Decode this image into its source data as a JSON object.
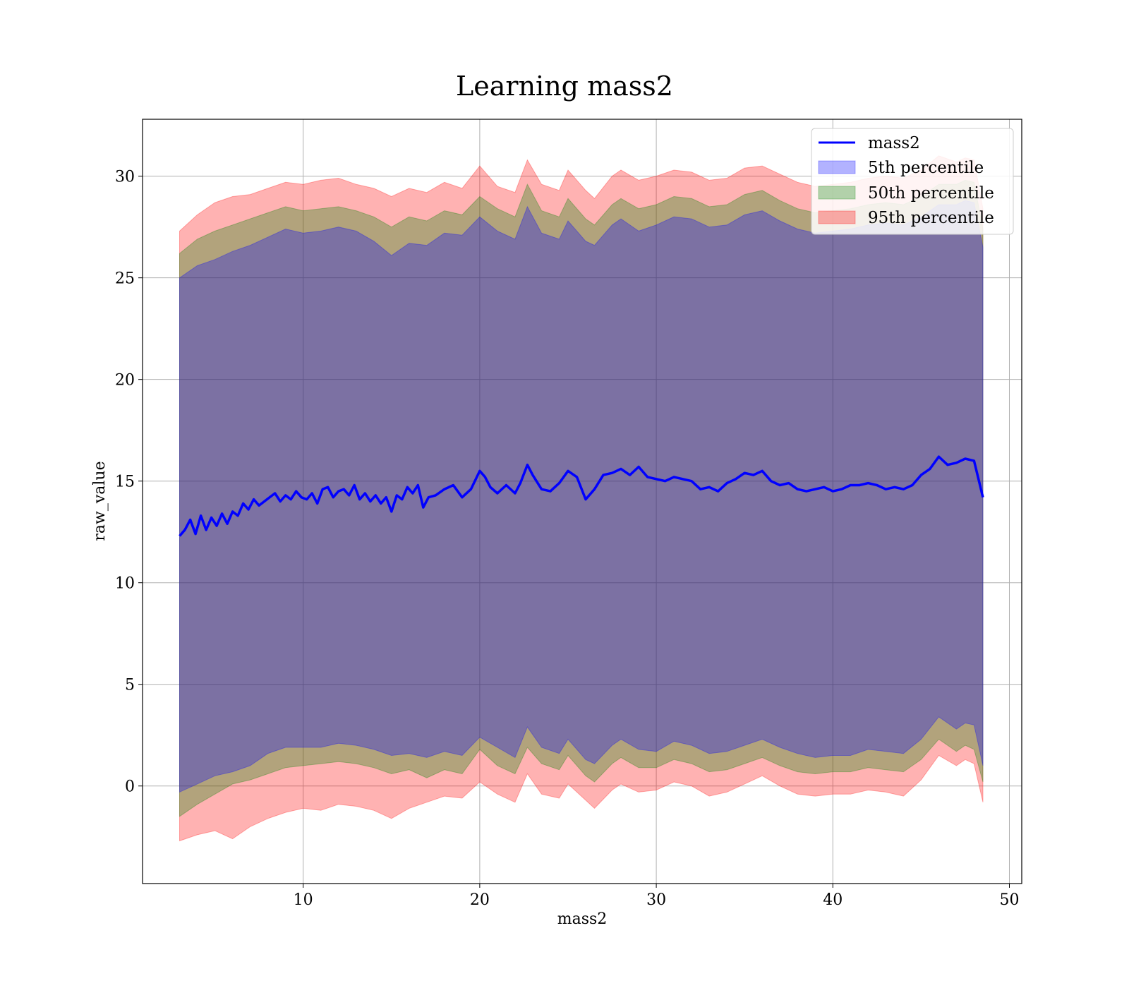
{
  "chart_data": {
    "type": "line",
    "title": "Learning mass2",
    "xlabel": "mass2",
    "ylabel": "raw_value",
    "xlim": [
      0.9,
      50.7
    ],
    "ylim": [
      -4.8,
      32.8
    ],
    "xticks": [
      10,
      20,
      30,
      40,
      50
    ],
    "yticks": [
      0,
      5,
      10,
      15,
      20,
      25,
      30
    ],
    "grid": true,
    "legend_position": "top-right",
    "series": [
      {
        "name": "mass2",
        "kind": "line",
        "color": "#0000ff",
        "x": [
          3.0,
          3.3,
          3.6,
          3.9,
          4.2,
          4.5,
          4.8,
          5.1,
          5.4,
          5.7,
          6.0,
          6.3,
          6.6,
          6.9,
          7.2,
          7.5,
          7.8,
          8.1,
          8.4,
          8.7,
          9.0,
          9.3,
          9.6,
          9.9,
          10.2,
          10.5,
          10.8,
          11.1,
          11.4,
          11.7,
          12.0,
          12.3,
          12.6,
          12.9,
          13.2,
          13.5,
          13.8,
          14.1,
          14.4,
          14.7,
          15.0,
          15.3,
          15.6,
          15.9,
          16.2,
          16.5,
          16.8,
          17.1,
          17.5,
          18.0,
          18.5,
          19.0,
          19.5,
          20.0,
          20.3,
          20.6,
          21.0,
          21.5,
          22.0,
          22.3,
          22.7,
          23.0,
          23.5,
          24.0,
          24.5,
          25.0,
          25.5,
          26.0,
          26.5,
          27.0,
          27.5,
          28.0,
          28.5,
          29.0,
          29.5,
          30.0,
          30.5,
          31.0,
          31.5,
          32.0,
          32.5,
          33.0,
          33.5,
          34.0,
          34.5,
          35.0,
          35.5,
          36.0,
          36.5,
          37.0,
          37.5,
          38.0,
          38.5,
          39.0,
          39.5,
          40.0,
          40.5,
          41.0,
          41.5,
          42.0,
          42.5,
          43.0,
          43.5,
          44.0,
          44.5,
          45.0,
          45.5,
          46.0,
          46.5,
          47.0,
          47.5,
          48.0,
          48.5
        ],
        "y": [
          12.3,
          12.6,
          13.1,
          12.4,
          13.3,
          12.6,
          13.2,
          12.8,
          13.4,
          12.9,
          13.5,
          13.3,
          13.9,
          13.6,
          14.1,
          13.8,
          14.0,
          14.2,
          14.4,
          14.0,
          14.3,
          14.1,
          14.5,
          14.2,
          14.1,
          14.4,
          13.9,
          14.6,
          14.7,
          14.2,
          14.5,
          14.6,
          14.3,
          14.8,
          14.1,
          14.4,
          14.0,
          14.3,
          13.9,
          14.2,
          13.5,
          14.3,
          14.1,
          14.7,
          14.4,
          14.8,
          13.7,
          14.2,
          14.3,
          14.6,
          14.8,
          14.2,
          14.6,
          15.5,
          15.2,
          14.7,
          14.4,
          14.8,
          14.4,
          14.9,
          15.8,
          15.3,
          14.6,
          14.5,
          14.9,
          15.5,
          15.2,
          14.1,
          14.6,
          15.3,
          15.4,
          15.6,
          15.3,
          15.7,
          15.2,
          15.1,
          15.0,
          15.2,
          15.1,
          15.0,
          14.6,
          14.7,
          14.5,
          14.9,
          15.1,
          15.4,
          15.3,
          15.5,
          15.0,
          14.8,
          14.9,
          14.6,
          14.5,
          14.6,
          14.7,
          14.5,
          14.6,
          14.8,
          14.8,
          14.9,
          14.8,
          14.6,
          14.7,
          14.6,
          14.8,
          15.3,
          15.6,
          16.2,
          15.8,
          15.9,
          16.1,
          16.0,
          14.2
        ]
      },
      {
        "name": "5th percentile",
        "kind": "band",
        "color": "#0000ff",
        "x": [
          3.0,
          4.0,
          5.0,
          6.0,
          7.0,
          8.0,
          9.0,
          10.0,
          11.0,
          12.0,
          13.0,
          14.0,
          15.0,
          16.0,
          17.0,
          18.0,
          19.0,
          20.0,
          21.0,
          22.0,
          22.7,
          23.5,
          24.5,
          25.0,
          26.0,
          26.5,
          27.5,
          28.0,
          29.0,
          30.0,
          31.0,
          32.0,
          33.0,
          34.0,
          35.0,
          36.0,
          37.0,
          38.0,
          39.0,
          40.0,
          41.0,
          42.0,
          43.0,
          44.0,
          45.0,
          46.0,
          47.0,
          47.5,
          48.0,
          48.5
        ],
        "lower": [
          -0.3,
          0.1,
          0.5,
          0.7,
          1.0,
          1.6,
          1.9,
          1.9,
          1.9,
          2.1,
          2.0,
          1.8,
          1.5,
          1.6,
          1.4,
          1.7,
          1.5,
          2.4,
          1.9,
          1.4,
          2.9,
          1.9,
          1.6,
          2.3,
          1.3,
          1.1,
          2.0,
          2.3,
          1.8,
          1.7,
          2.2,
          2.0,
          1.6,
          1.7,
          2.0,
          2.3,
          1.9,
          1.6,
          1.4,
          1.5,
          1.5,
          1.8,
          1.7,
          1.6,
          2.3,
          3.4,
          2.8,
          3.1,
          3.0,
          1.0
        ],
        "upper": [
          25.0,
          25.6,
          25.9,
          26.3,
          26.6,
          27.0,
          27.4,
          27.2,
          27.3,
          27.5,
          27.3,
          26.8,
          26.1,
          26.7,
          26.6,
          27.2,
          27.1,
          28.0,
          27.3,
          26.9,
          28.5,
          27.2,
          26.9,
          27.8,
          26.8,
          26.6,
          27.6,
          27.9,
          27.3,
          27.6,
          28.0,
          27.9,
          27.5,
          27.6,
          28.1,
          28.3,
          27.8,
          27.4,
          27.2,
          27.3,
          27.4,
          27.6,
          27.7,
          27.6,
          28.0,
          28.6,
          28.6,
          28.8,
          28.7,
          26.5
        ]
      },
      {
        "name": "50th percentile",
        "kind": "band",
        "color": "#008000",
        "x": [
          3.0,
          4.0,
          5.0,
          6.0,
          7.0,
          8.0,
          9.0,
          10.0,
          11.0,
          12.0,
          13.0,
          14.0,
          15.0,
          16.0,
          17.0,
          18.0,
          19.0,
          20.0,
          21.0,
          22.0,
          22.7,
          23.5,
          24.5,
          25.0,
          26.0,
          26.5,
          27.5,
          28.0,
          29.0,
          30.0,
          31.0,
          32.0,
          33.0,
          34.0,
          35.0,
          36.0,
          37.0,
          38.0,
          39.0,
          40.0,
          41.0,
          42.0,
          43.0,
          44.0,
          45.0,
          46.0,
          47.0,
          47.5,
          48.0,
          48.5
        ],
        "lower": [
          -1.5,
          -0.9,
          -0.4,
          0.1,
          0.3,
          0.6,
          0.9,
          1.0,
          1.1,
          1.2,
          1.1,
          0.9,
          0.6,
          0.8,
          0.4,
          0.8,
          0.6,
          1.8,
          1.0,
          0.6,
          1.9,
          1.1,
          0.8,
          1.5,
          0.5,
          0.2,
          1.1,
          1.4,
          0.9,
          0.9,
          1.3,
          1.1,
          0.7,
          0.8,
          1.1,
          1.4,
          1.0,
          0.7,
          0.6,
          0.7,
          0.7,
          0.9,
          0.8,
          0.7,
          1.3,
          2.3,
          1.7,
          2.0,
          1.8,
          0.2
        ],
        "upper": [
          26.2,
          26.9,
          27.3,
          27.6,
          27.9,
          28.2,
          28.5,
          28.3,
          28.4,
          28.5,
          28.3,
          28.0,
          27.5,
          28.0,
          27.8,
          28.3,
          28.1,
          29.0,
          28.4,
          28.0,
          29.6,
          28.3,
          28.0,
          28.9,
          27.9,
          27.6,
          28.6,
          28.9,
          28.4,
          28.6,
          29.0,
          28.9,
          28.5,
          28.6,
          29.1,
          29.3,
          28.8,
          28.4,
          28.2,
          28.3,
          28.4,
          28.6,
          28.7,
          28.6,
          29.0,
          29.6,
          29.6,
          29.8,
          29.7,
          27.4
        ]
      },
      {
        "name": "95th percentile",
        "kind": "band",
        "color": "#ff0000",
        "x": [
          3.0,
          4.0,
          5.0,
          6.0,
          7.0,
          8.0,
          9.0,
          10.0,
          11.0,
          12.0,
          13.0,
          14.0,
          15.0,
          16.0,
          17.0,
          18.0,
          19.0,
          20.0,
          21.0,
          22.0,
          22.7,
          23.5,
          24.5,
          25.0,
          26.0,
          26.5,
          27.5,
          28.0,
          29.0,
          30.0,
          31.0,
          32.0,
          33.0,
          34.0,
          35.0,
          36.0,
          37.0,
          38.0,
          39.0,
          40.0,
          41.0,
          42.0,
          43.0,
          44.0,
          45.0,
          46.0,
          47.0,
          47.5,
          48.0,
          48.5
        ],
        "lower": [
          -2.7,
          -2.4,
          -2.2,
          -2.6,
          -2.0,
          -1.6,
          -1.3,
          -1.1,
          -1.2,
          -0.9,
          -1.0,
          -1.2,
          -1.6,
          -1.1,
          -0.8,
          -0.5,
          -0.6,
          0.2,
          -0.4,
          -0.8,
          0.6,
          -0.4,
          -0.6,
          0.1,
          -0.7,
          -1.1,
          -0.2,
          0.1,
          -0.3,
          -0.2,
          0.2,
          0.0,
          -0.5,
          -0.3,
          0.1,
          0.5,
          0.0,
          -0.4,
          -0.5,
          -0.4,
          -0.4,
          -0.2,
          -0.3,
          -0.5,
          0.3,
          1.5,
          1.0,
          1.3,
          1.1,
          -0.8
        ],
        "upper": [
          27.3,
          28.1,
          28.7,
          29.0,
          29.1,
          29.4,
          29.7,
          29.6,
          29.8,
          29.9,
          29.6,
          29.4,
          29.0,
          29.4,
          29.2,
          29.7,
          29.4,
          30.5,
          29.5,
          29.2,
          30.8,
          29.6,
          29.3,
          30.3,
          29.3,
          28.9,
          30.0,
          30.3,
          29.8,
          30.0,
          30.3,
          30.2,
          29.8,
          29.9,
          30.4,
          30.5,
          30.1,
          29.7,
          29.5,
          29.6,
          29.7,
          29.9,
          30.0,
          29.9,
          30.3,
          31.0,
          30.7,
          30.9,
          30.8,
          28.4
        ]
      }
    ]
  }
}
